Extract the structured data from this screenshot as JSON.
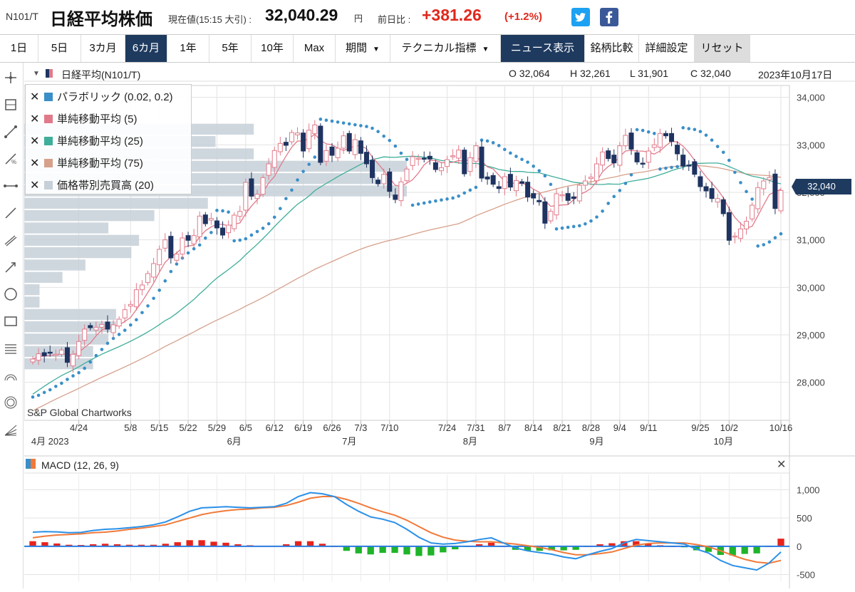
{
  "header": {
    "code": "N101/T",
    "name": "日経平均株価",
    "current_label": "現在値(15:15 大引) :",
    "price": "32,040.29",
    "yen": "円",
    "prev_label": "前日比 :",
    "change": "+381.26",
    "change_pct": "(+1.2%)"
  },
  "tabs": [
    {
      "label": "1日"
    },
    {
      "label": "5日"
    },
    {
      "label": "3カ月"
    },
    {
      "label": "6カ月"
    },
    {
      "label": "1年"
    },
    {
      "label": "5年"
    },
    {
      "label": "10年"
    },
    {
      "label": "Max"
    },
    {
      "label": "期間"
    },
    {
      "label": "テクニカル指標"
    },
    {
      "label": "ニュース表示"
    },
    {
      "label": "銘柄比較"
    },
    {
      "label": "詳細設定"
    },
    {
      "label": "リセット"
    }
  ],
  "chart_header": {
    "symbol": "日経平均(N101/T)",
    "open": "O 32,064",
    "high": "H 32,261",
    "low": "L 31,901",
    "close": "C 32,040",
    "date": "2023年10月17日"
  },
  "legend": [
    {
      "label": "パラボリック (0.02, 0.2)",
      "color": "#3a8fc8"
    },
    {
      "label": "単純移動平均 (5)",
      "color": "#e07a8a"
    },
    {
      "label": "単純移動平均 (25)",
      "color": "#3fae9a"
    },
    {
      "label": "単純移動平均 (75)",
      "color": "#d6a08a"
    },
    {
      "label": "価格帯別売買高 (20)",
      "color": "#c7d0d8"
    }
  ],
  "watermark": "S&P Global Chartworks",
  "last_price_tag": "32,040",
  "macd_label": "MACD (12, 26, 9)",
  "colors": {
    "up": "#ffffff",
    "up_border": "#e07a8a",
    "down": "#1e3360",
    "para": "#3a8fc8",
    "sma5": "#e07a8a",
    "sma25": "#3fae9a",
    "sma75": "#d6a08a",
    "macd": "#2a90e8",
    "signal": "#f07a3a",
    "hist_pos": "#e8231c",
    "hist_neg": "#1fb42a",
    "vp": "#c7d0d8"
  },
  "chart_data": {
    "type": "candlestick",
    "y_ticks": [
      28000,
      29000,
      30000,
      31000,
      32000,
      33000,
      34000
    ],
    "y_tick_labels": [
      "28,000",
      "29,000",
      "30,000",
      "31,000",
      "32,000",
      "33,000",
      "34,000"
    ],
    "x_ticks": [
      {
        "d": "4/24",
        "i": 8
      },
      {
        "d": "5/8",
        "i": 17
      },
      {
        "d": "5/15",
        "i": 22
      },
      {
        "d": "5/22",
        "i": 27
      },
      {
        "d": "5/29",
        "i": 32
      },
      {
        "d": "6/5",
        "i": 37
      },
      {
        "d": "6/12",
        "i": 42
      },
      {
        "d": "6/19",
        "i": 47
      },
      {
        "d": "6/26",
        "i": 52
      },
      {
        "d": "7/3",
        "i": 57
      },
      {
        "d": "7/10",
        "i": 62
      },
      {
        "d": "7/24",
        "i": 72
      },
      {
        "d": "7/31",
        "i": 77
      },
      {
        "d": "8/7",
        "i": 82
      },
      {
        "d": "8/14",
        "i": 87
      },
      {
        "d": "8/21",
        "i": 92
      },
      {
        "d": "8/28",
        "i": 97
      },
      {
        "d": "9/4",
        "i": 102
      },
      {
        "d": "9/11",
        "i": 107
      },
      {
        "d": "9/25",
        "i": 116
      },
      {
        "d": "10/2",
        "i": 121
      },
      {
        "d": "10/16",
        "i": 130
      }
    ],
    "month_labels": [
      {
        "t": "4月 2023",
        "i": 3
      },
      {
        "t": "6月",
        "i": 35
      },
      {
        "t": "7月",
        "i": 55
      },
      {
        "t": "8月",
        "i": 76
      },
      {
        "t": "9月",
        "i": 98
      },
      {
        "t": "10月",
        "i": 120
      }
    ],
    "closes": [
      28490,
      28600,
      28560,
      28620,
      28590,
      28680,
      28420,
      28590,
      28860,
      29120,
      29150,
      29160,
      29220,
      29120,
      29210,
      29330,
      29530,
      29640,
      29950,
      30050,
      30290,
      30500,
      30800,
      31000,
      30620,
      30700,
      31040,
      30990,
      31090,
      31500,
      31340,
      31450,
      31250,
      31100,
      31310,
      31520,
      31600,
      32210,
      31920,
      31960,
      32310,
      32600,
      32880,
      33030,
      32990,
      33260,
      33250,
      32870,
      33310,
      33420,
      32630,
      32880,
      32780,
      32930,
      33190,
      32870,
      33110,
      32820,
      32600,
      32310,
      32180,
      32380,
      32020,
      31850,
      32220,
      32490,
      32750,
      32720,
      32710,
      32700,
      32480,
      32520,
      32690,
      32770,
      32890,
      32390,
      32730,
      32980,
      32300,
      32280,
      32170,
      32080,
      32330,
      32110,
      32250,
      32190,
      31900,
      31880,
      31800,
      31350,
      31600,
      31970,
      31950,
      31830,
      31870,
      32150,
      32240,
      32320,
      32600,
      32850,
      32710,
      32620,
      32980,
      33200,
      32910,
      32640,
      32610,
      32870,
      33000,
      33240,
      33190,
      33070,
      32810,
      32550,
      32570,
      32380,
      32120,
      32030,
      31870,
      31870,
      31550,
      30990,
      31080,
      31230,
      31390,
      31730,
      32100,
      32240,
      32310,
      31660,
      32040
    ],
    "volume_profile_bands": [
      {
        "lo": 28260,
        "hi": 28520,
        "w": 0.09
      },
      {
        "lo": 28520,
        "hi": 28780,
        "w": 0.09
      },
      {
        "lo": 28780,
        "hi": 29040,
        "w": 0.11
      },
      {
        "lo": 29040,
        "hi": 29300,
        "w": 0.12
      },
      {
        "lo": 29300,
        "hi": 29560,
        "w": 0.12
      },
      {
        "lo": 29560,
        "hi": 29820,
        "w": 0.02
      },
      {
        "lo": 29820,
        "hi": 30080,
        "w": 0.02
      },
      {
        "lo": 30080,
        "hi": 30340,
        "w": 0.05
      },
      {
        "lo": 30340,
        "hi": 30600,
        "w": 0.08
      },
      {
        "lo": 30600,
        "hi": 30860,
        "w": 0.14
      },
      {
        "lo": 30860,
        "hi": 31120,
        "w": 0.15
      },
      {
        "lo": 31120,
        "hi": 31380,
        "w": 0.11
      },
      {
        "lo": 31380,
        "hi": 31640,
        "w": 0.17
      },
      {
        "lo": 31640,
        "hi": 31900,
        "w": 0.24
      },
      {
        "lo": 31900,
        "hi": 32160,
        "w": 0.5
      },
      {
        "lo": 32160,
        "hi": 32420,
        "w": 0.46
      },
      {
        "lo": 32420,
        "hi": 32680,
        "w": 0.5
      },
      {
        "lo": 32680,
        "hi": 32940,
        "w": 0.3
      },
      {
        "lo": 32940,
        "hi": 33200,
        "w": 0.25
      },
      {
        "lo": 33200,
        "hi": 33460,
        "w": 0.3
      }
    ],
    "macd": {
      "y_ticks": [
        -500,
        0,
        500,
        1000
      ],
      "y_tick_labels": [
        "-500",
        "0",
        "500",
        "1,000"
      ],
      "macd": [
        250,
        260,
        255,
        240,
        245,
        280,
        300,
        310,
        330,
        350,
        380,
        430,
        520,
        620,
        680,
        690,
        700,
        690,
        680,
        690,
        700,
        760,
        880,
        950,
        930,
        880,
        740,
        620,
        520,
        480,
        420,
        300,
        160,
        60,
        40,
        50,
        80,
        120,
        150,
        60,
        -30,
        -80,
        -110,
        -140,
        -190,
        -220,
        -150,
        -90,
        -40,
        60,
        120,
        100,
        80,
        60,
        40,
        -50,
        -120,
        -250,
        -340,
        -380,
        -420,
        -300,
        -100
      ],
      "signal": [
        150,
        180,
        200,
        210,
        220,
        240,
        250,
        270,
        300,
        320,
        350,
        380,
        440,
        500,
        560,
        600,
        630,
        650,
        660,
        680,
        690,
        720,
        780,
        850,
        880,
        880,
        830,
        760,
        680,
        610,
        550,
        460,
        350,
        240,
        160,
        110,
        90,
        80,
        80,
        60,
        40,
        10,
        -20,
        -60,
        -110,
        -150,
        -150,
        -130,
        -100,
        -40,
        20,
        50,
        60,
        60,
        60,
        30,
        -10,
        -80,
        -160,
        -230,
        -280,
        -300,
        -250
      ]
    }
  }
}
